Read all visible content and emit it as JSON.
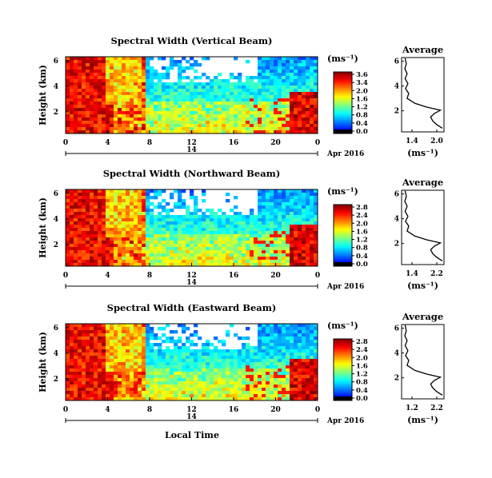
{
  "figure": {
    "xlabel": "Local Time"
  },
  "chart_data": [
    {
      "type": "heatmap",
      "title": "Spectral Width (Vertical Beam)",
      "ylabel": "Height (km)",
      "xticks": [
        "0",
        "4",
        "8",
        "12",
        "16",
        "20",
        "0"
      ],
      "yticks": [
        "6",
        "4",
        "2"
      ],
      "date_tick": "14",
      "date_label": "Apr 2016",
      "colorbar": {
        "unit": "(ms⁻¹)",
        "ticks": [
          "3.6",
          "3.4",
          "2.0",
          "1.6",
          "1.2",
          "0.8",
          "0.4",
          "0.0"
        ]
      },
      "average": {
        "title": "Average",
        "xlabel": "(ms⁻¹)",
        "xticks": [
          "1.4",
          "2.0"
        ],
        "yticks": [
          "6",
          "4",
          "2"
        ]
      }
    },
    {
      "type": "heatmap",
      "title": "Spectral Width (Northward Beam)",
      "ylabel": "Height (km)",
      "xticks": [
        "0",
        "4",
        "8",
        "12",
        "16",
        "20",
        "0"
      ],
      "yticks": [
        "6",
        "4",
        "2"
      ],
      "date_tick": "14",
      "date_label": "Apr 2016",
      "colorbar": {
        "unit": "(ms⁻¹)",
        "ticks": [
          "2.8",
          "2.4",
          "2.0",
          "1.6",
          "1.2",
          "0.8",
          "0.4",
          "0.0"
        ]
      },
      "average": {
        "title": "Average",
        "xlabel": "(ms⁻¹)",
        "xticks": [
          "1.4",
          "2.2"
        ],
        "yticks": [
          "6",
          "4",
          "2"
        ]
      }
    },
    {
      "type": "heatmap",
      "title": "Spectral Width (Eastward Beam)",
      "ylabel": "Height (km)",
      "xticks": [
        "0",
        "4",
        "8",
        "12",
        "16",
        "20",
        "0"
      ],
      "yticks": [
        "6",
        "4",
        "2"
      ],
      "date_tick": "14",
      "date_label": "Apr 2016",
      "colorbar": {
        "unit": "(ms⁻¹)",
        "ticks": [
          "2.8",
          "2.4",
          "2.0",
          "1.6",
          "1.2",
          "0.8",
          "0.4",
          "0.0"
        ]
      },
      "average": {
        "title": "Average",
        "xlabel": "(ms⁻¹)",
        "xticks": [
          "1.2",
          "2.2"
        ],
        "yticks": [
          "6",
          "4",
          "2"
        ]
      }
    }
  ]
}
